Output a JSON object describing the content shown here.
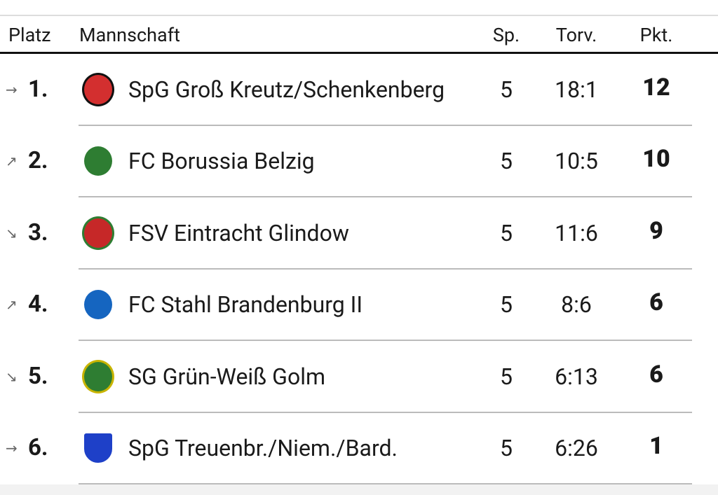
{
  "table": {
    "headers": [
      "Platz",
      "Mannschaft",
      "Sp.",
      "Torv.",
      "Pkt."
    ],
    "rows": [
      {
        "trend": "→",
        "rank": "1.",
        "team": "SpG Groß Kreutz/Schenkenberg",
        "games": "5",
        "goals": "18:1",
        "points": "12"
      },
      {
        "trend": "↗",
        "rank": "2.",
        "team": "FC Borussia Belzig",
        "games": "5",
        "goals": "10:5",
        "points": "10"
      },
      {
        "trend": "↘",
        "rank": "3.",
        "team": "FSV Eintracht Glindow",
        "games": "5",
        "goals": "11:6",
        "points": "9"
      },
      {
        "trend": "↗",
        "rank": "4.",
        "team": "FC Stahl Brandenburg II",
        "games": "5",
        "goals": "8:6",
        "points": "6"
      },
      {
        "trend": "↘",
        "rank": "5.",
        "team": "SG Grün-Weiß Golm",
        "games": "5",
        "goals": "6:13",
        "points": "6"
      },
      {
        "trend": "→",
        "rank": "6.",
        "team": "SpG Treuenbr./Niem./Bard.",
        "games": "5",
        "goals": "6:26",
        "points": "1"
      }
    ]
  }
}
